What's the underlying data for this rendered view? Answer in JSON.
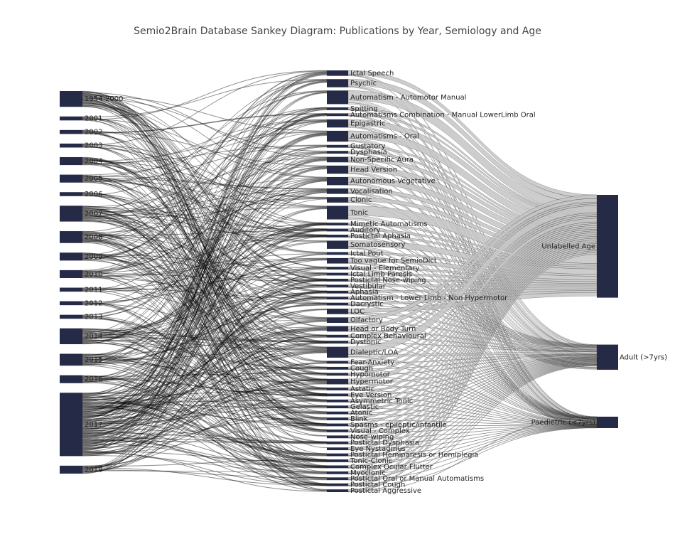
{
  "title": "Semio2Brain Database Sankey Diagram: Publications by Year, Semiology and Age",
  "colors": {
    "node": "#252a47",
    "link_light": "#c4c4c4",
    "link_dark": "#000000",
    "text": "#222222"
  },
  "years": [
    "1954-2000",
    "2001",
    "2002",
    "2003",
    "2004",
    "2005",
    "2006",
    "2007",
    "2008",
    "2009",
    "2010",
    "2011",
    "2012",
    "2013",
    "2014",
    "2015",
    "2016",
    "2017",
    "2018"
  ],
  "semiologies": [
    "Ictal Speech",
    "Psychic",
    "Automatism - Automotor Manual",
    "Spitting",
    "Automatisms Combination - Manual LowerLimb Oral",
    "Epigastric",
    "Automatisms - Oral",
    "Gustatory",
    "Dysphasia",
    "Non-Specific Aura",
    "Head Version",
    "Autonomous-Vegetative",
    "Vocalisation",
    "Clonic",
    "Tonic",
    "Mimetic Automatisms",
    "Auditory",
    "Postictal Aphasia",
    "Somatosensory",
    "Ictal Pout",
    "Too vague for SemioDict",
    "Visual - Elementary",
    "Ictal Limb Paresis",
    "Postictal Nose-wiping",
    "Vestibular",
    "Aphasia",
    "Automatism - Lower Limb - Non Hypermotor",
    "Dacrystic",
    "LOC",
    "Olfactory",
    "Head or Body Turn",
    "Complex Behavioural",
    "Dystonic",
    "Dialeptic/LOA",
    "Fear-Anxiety",
    "Cough",
    "Hypomotor",
    "Hypermotor",
    "Astatic",
    "Eye Version",
    "Asymmetric Tonic",
    "Gelastic",
    "Atonic",
    "Blink",
    "Spasms - epileptic/infantile",
    "Visual - Complex",
    "Nose-wiping",
    "Postictal Dysphasia",
    "Eye Nystagmus",
    "Postictal Hemiparesis or Hemiplegia",
    "Tonic-Clonic",
    "Complex Ocular Flutter",
    "Myoclonic",
    "Postictal Oral or Manual Automatisms",
    "Postictal Cough",
    "Postictal Aggressive"
  ],
  "ages": [
    "Unlabelled Age",
    "Adult (>7yrs)",
    "Paedietric (<7yrs)"
  ],
  "sankey_data": {
    "type": "sankey",
    "year_weights": [
      4,
      1,
      1,
      1,
      2,
      2,
      1,
      4,
      3,
      2,
      2,
      1,
      1,
      1,
      4,
      3,
      2,
      16,
      2
    ],
    "semiology_weights": [
      2,
      3,
      5,
      1,
      1,
      3,
      4,
      1,
      1,
      2,
      3,
      3,
      2,
      2,
      5,
      1,
      1,
      1,
      3,
      1,
      2,
      1,
      1,
      1,
      1,
      1,
      1,
      1,
      2,
      2,
      2,
      1,
      1,
      4,
      1,
      1,
      1,
      2,
      1,
      1,
      1,
      1,
      1,
      1,
      1,
      1,
      1,
      1,
      1,
      1,
      1,
      1,
      1,
      1,
      1,
      1
    ],
    "age_weights": [
      45,
      11,
      5
    ]
  }
}
